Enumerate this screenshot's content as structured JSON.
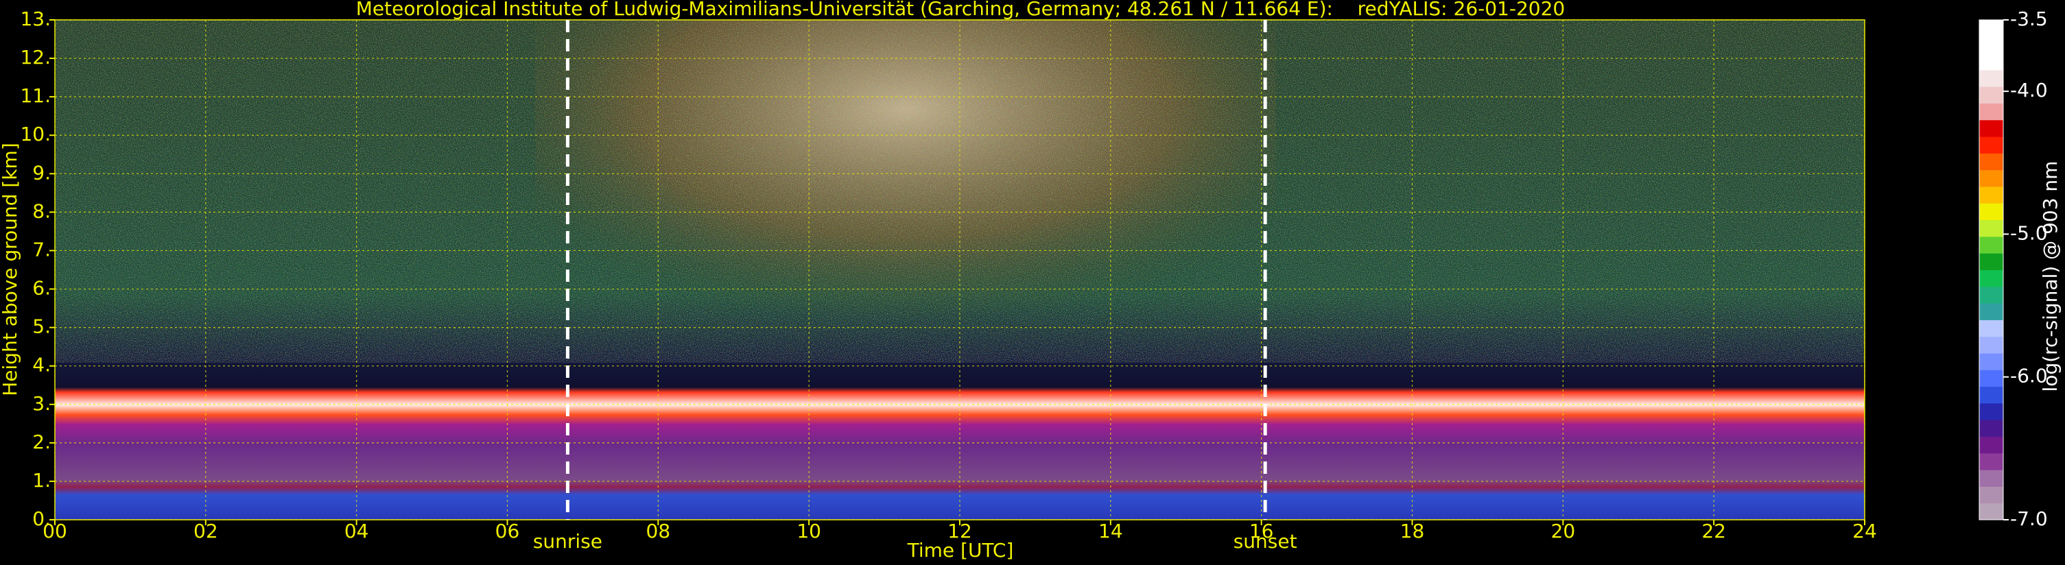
{
  "chart_data": {
    "type": "heatmap",
    "title": "Meteorological Institute of Ludwig-Maximilians-Universität (Garching, Germany; 48.261 N / 11.664 E):    redYALIS: 26-01-2020",
    "xlabel": "Time [UTC]",
    "ylabel": "Height above ground [km]",
    "xlim": [
      0,
      24
    ],
    "xticks": [
      {
        "value": 0,
        "label": "00"
      },
      {
        "value": 2,
        "label": "02"
      },
      {
        "value": 4,
        "label": "04"
      },
      {
        "value": 6,
        "label": "06"
      },
      {
        "value": 8,
        "label": "08"
      },
      10,
      12,
      14,
      16,
      18,
      20,
      22,
      24
    ],
    "ylim": [
      0,
      13
    ],
    "yticks": [
      {
        "value": 0,
        "label": "0."
      },
      {
        "value": 1,
        "label": "1."
      },
      {
        "value": 2,
        "label": "2."
      },
      {
        "value": 3,
        "label": "3."
      },
      {
        "value": 4,
        "label": "4."
      },
      {
        "value": 5,
        "label": "5."
      },
      {
        "value": 6,
        "label": "6."
      },
      {
        "value": 7,
        "label": "7."
      },
      {
        "value": 8,
        "label": "8."
      },
      {
        "value": 9,
        "label": "9."
      },
      {
        "value": 10,
        "label": "10."
      },
      {
        "value": 11,
        "label": "11."
      },
      {
        "value": 12,
        "label": "12."
      },
      {
        "value": 13,
        "label": "13."
      }
    ],
    "grid": true,
    "grid_color": "#e8e800",
    "annotations": [
      {
        "text": "sunrise",
        "x": 6.8
      },
      {
        "text": "sunset",
        "x": 16.05
      }
    ],
    "colorbar": {
      "label": "log(rc-signal) @ 903 nm",
      "clim": [
        -7.0,
        -3.5
      ],
      "ticks": [
        -3.5,
        {
          "value": -4.0,
          "label": "-4.0"
        },
        {
          "value": -5.0,
          "label": "-5.0"
        },
        {
          "value": -6.0,
          "label": "-6.0"
        },
        {
          "value": -7.0,
          "label": "-7.0"
        }
      ],
      "colors": [
        "#b8a4b8",
        "#b090b0",
        "#a070a8",
        "#8c3c98",
        "#701a8c",
        "#4a1890",
        "#2828b0",
        "#3050e0",
        "#5070ff",
        "#7890ff",
        "#a0b0ff",
        "#b8c8ff",
        "#30a0a0",
        "#20b080",
        "#10c050",
        "#10a020",
        "#60d030",
        "#c0f030",
        "#f0f000",
        "#ffc000",
        "#ff9000",
        "#ff6000",
        "#ff2000",
        "#e00000",
        "#f0a0a0",
        "#f0c8c8",
        "#f4e4e4",
        "#ffffff",
        "#ffffff",
        "#ffffff"
      ]
    }
  }
}
